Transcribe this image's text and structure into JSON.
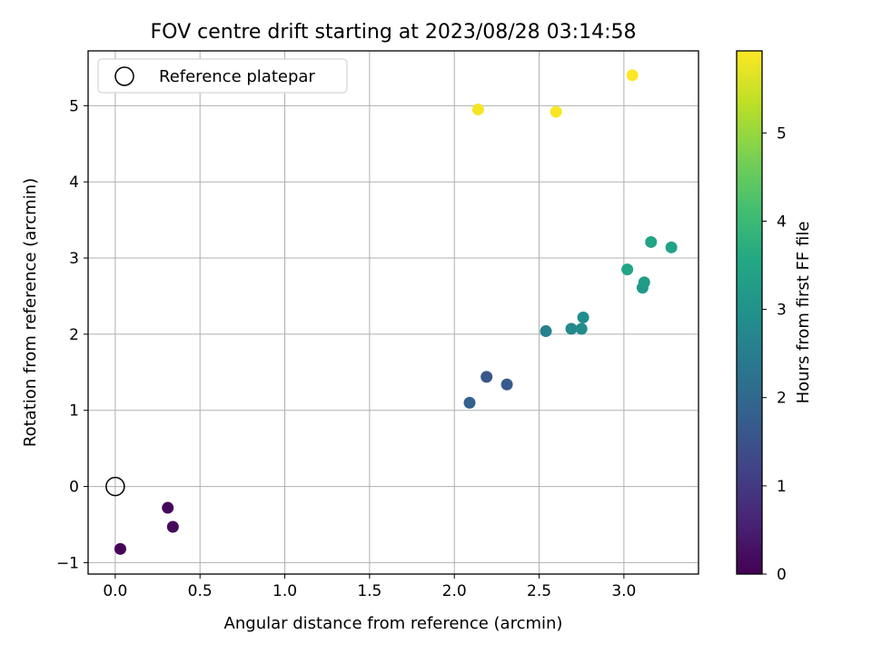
{
  "chart_data": {
    "type": "scatter",
    "title": "FOV centre drift starting at 2023/08/28 03:14:58",
    "xlabel": "Angular distance from reference (arcmin)",
    "ylabel": "Rotation from reference (arcmin)",
    "xlim": [
      -0.16,
      3.44
    ],
    "ylim": [
      -1.15,
      5.72
    ],
    "x_ticks": [
      0.0,
      0.5,
      1.0,
      1.5,
      2.0,
      2.5,
      3.0
    ],
    "x_tick_labels": [
      "0.0",
      "0.5",
      "1.0",
      "1.5",
      "2.0",
      "2.5",
      "3.0"
    ],
    "y_ticks": [
      -1,
      0,
      1,
      2,
      3,
      4,
      5
    ],
    "y_tick_labels": [
      "−1",
      "0",
      "1",
      "2",
      "3",
      "4",
      "5"
    ],
    "grid": true,
    "legend_position": "top-left",
    "reference": {
      "label": "Reference platepar",
      "x": 0.0,
      "y": 0.0,
      "marker": "open circle"
    },
    "colorbar": {
      "label": "Hours from first FF file",
      "colormap": "viridis",
      "range": [
        0,
        5.93
      ],
      "ticks": [
        0,
        1,
        2,
        3,
        4,
        5
      ],
      "tick_labels": [
        "0",
        "1",
        "2",
        "3",
        "4",
        "5"
      ]
    },
    "points": [
      {
        "x": 0.03,
        "y": -0.82,
        "hours": 0.05
      },
      {
        "x": 0.31,
        "y": -0.28,
        "hours": 0.1
      },
      {
        "x": 0.34,
        "y": -0.53,
        "hours": 0.15
      },
      {
        "x": 2.09,
        "y": 1.1,
        "hours": 1.85
      },
      {
        "x": 2.19,
        "y": 1.44,
        "hours": 1.6
      },
      {
        "x": 2.31,
        "y": 1.34,
        "hours": 1.7
      },
      {
        "x": 2.54,
        "y": 2.04,
        "hours": 2.55
      },
      {
        "x": 2.69,
        "y": 2.07,
        "hours": 2.75
      },
      {
        "x": 2.75,
        "y": 2.07,
        "hours": 2.85
      },
      {
        "x": 2.76,
        "y": 2.22,
        "hours": 2.9
      },
      {
        "x": 3.02,
        "y": 2.85,
        "hours": 3.5
      },
      {
        "x": 3.11,
        "y": 2.61,
        "hours": 3.15
      },
      {
        "x": 3.12,
        "y": 2.68,
        "hours": 3.25
      },
      {
        "x": 3.16,
        "y": 3.21,
        "hours": 3.45
      },
      {
        "x": 3.28,
        "y": 3.14,
        "hours": 3.4
      },
      {
        "x": 2.14,
        "y": 4.95,
        "hours": 5.85
      },
      {
        "x": 2.6,
        "y": 4.92,
        "hours": 5.88
      },
      {
        "x": 3.05,
        "y": 5.4,
        "hours": 5.93
      }
    ]
  }
}
